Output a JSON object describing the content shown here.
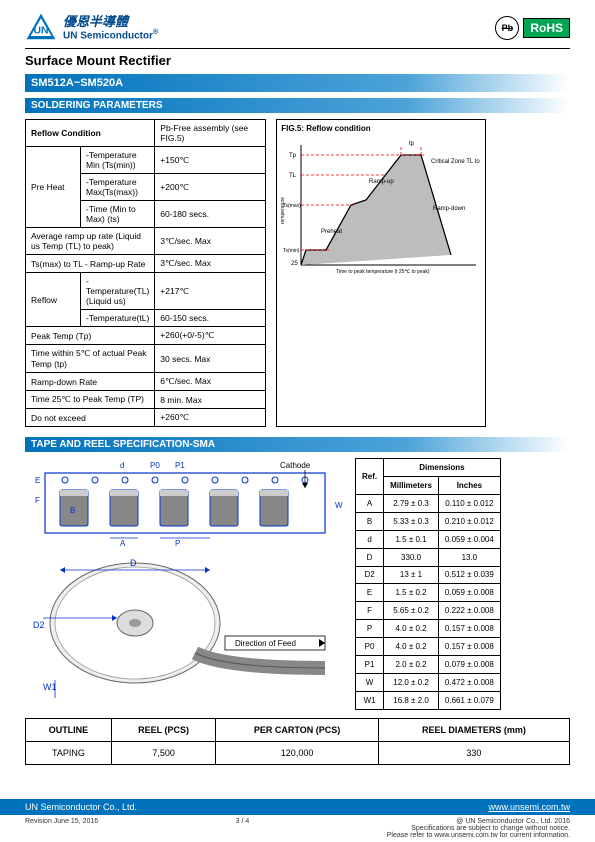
{
  "header": {
    "company_cn": "優恩半導體",
    "company_en": "UN Semiconductor",
    "reg_mark": "®",
    "pb_label": "Pb",
    "rohs_label": "RoHS"
  },
  "page_title": "Surface Mount Rectifier",
  "part_number": "SM512A~SM520A",
  "section_soldering": "SOLDERING PARAMETERS",
  "solder": {
    "header_cond": "Reflow Condition",
    "header_val": "Pb-Free assembly (see FIG.5)",
    "preheat_label": "Pre Heat",
    "rows_preheat": [
      {
        "p": "-Temperature Min (Ts(min))",
        "v": "+150℃"
      },
      {
        "p": "-Temperature Max(Ts(max))",
        "v": "+200℃"
      },
      {
        "p": "-Time (Min to Max) (ts)",
        "v": "60-180 secs."
      }
    ],
    "rows_single": [
      {
        "p": "Average ramp up rate (Liquid us Temp (TL) to peak)",
        "v": "3℃/sec. Max"
      },
      {
        "p": "Ts(max) to TL - Ramp-up Rate",
        "v": "3℃/sec. Max"
      }
    ],
    "reflow_label": "Reflow",
    "rows_reflow": [
      {
        "p": "-Temperature(TL)(Liquid us)",
        "v": "+217℃"
      },
      {
        "p": "-Temperature(tL)",
        "v": "60-150 secs."
      }
    ],
    "rows_after": [
      {
        "p": "Peak Temp (Tp)",
        "v": "+260(+0/-5)℃"
      },
      {
        "p": "Time within 5℃ of actual Peak Temp (tp)",
        "v": "30 secs. Max"
      },
      {
        "p": "Ramp-down Rate",
        "v": "6℃/sec. Max"
      },
      {
        "p": "Time 25℃ to Peak Temp (TP)",
        "v": "8 min. Max"
      },
      {
        "p": "Do not exceed",
        "v": "+260℃"
      }
    ]
  },
  "reflow_figure": {
    "caption": "FIG.5: Reflow condition",
    "labels": {
      "tp": "tp",
      "critical": "Critical Zone TL to TP",
      "rampup": "Ramp-up",
      "rampdown": "Ramp-down",
      "preheat": "Preheat",
      "xlabel": "Time to peak temperature (t 25℃ to peak)",
      "tsmin": "Ts(min)",
      "tsmax": "Ts(max)",
      "tL": "TL",
      "tP": "TP",
      "t25": "25",
      "ylabel": "Temperature"
    }
  },
  "section_tape": "TAPE AND REEL SPECIFICATION-SMA",
  "tape_labels": {
    "cathode": "Cathode",
    "direction": "Direction of Feed",
    "P0": "P0",
    "P1": "P1",
    "d": "d",
    "E": "E",
    "F": "F",
    "B": "B",
    "A": "A",
    "P": "P",
    "W": "W",
    "D": "D",
    "D2": "D2",
    "W1": "W1"
  },
  "dims": {
    "header_ref": "Ref.",
    "header_dim": "Dimensions",
    "header_mm": "Millimeters",
    "header_in": "Inches",
    "rows": [
      {
        "r": "A",
        "mm": "2.79 ± 0.3",
        "in": "0.110 ± 0.012"
      },
      {
        "r": "B",
        "mm": "5.33 ± 0.3",
        "in": "0.210 ± 0.012"
      },
      {
        "r": "d",
        "mm": "1.5 ± 0.1",
        "in": "0.059 ± 0.004"
      },
      {
        "r": "D",
        "mm": "330.0",
        "in": "13.0"
      },
      {
        "r": "D2",
        "mm": "13 ± 1",
        "in": "0.512 ± 0.039"
      },
      {
        "r": "E",
        "mm": "1.5 ± 0.2",
        "in": "0.059 ± 0.008"
      },
      {
        "r": "F",
        "mm": "5.65 ± 0.2",
        "in": "0.222 ± 0.008"
      },
      {
        "r": "P",
        "mm": "4.0 ± 0.2",
        "in": "0.157 ± 0.008"
      },
      {
        "r": "P0",
        "mm": "4.0 ± 0.2",
        "in": "0.157 ± 0.008"
      },
      {
        "r": "P1",
        "mm": "2.0 ± 0.2",
        "in": "0.079 ± 0.008"
      },
      {
        "r": "W",
        "mm": "12.0 ± 0.2",
        "in": "0.472 ± 0.008"
      },
      {
        "r": "W1",
        "mm": "16.8 ± 2.0",
        "in": "0.661 ± 0.079"
      }
    ]
  },
  "pack": {
    "h_outline": "OUTLINE",
    "h_reel": "REEL (PCS)",
    "h_carton": "PER CARTON (PCS)",
    "h_diam": "REEL DIAMETERS (mm)",
    "r_label": "TAPING",
    "r_reel": "7,500",
    "r_carton": "120,000",
    "r_diam": "330"
  },
  "footer": {
    "company": "UN Semiconductor Co., Ltd.",
    "url": "www.unsemi.com.tw",
    "revision": "Revision June 15, 2016",
    "page": "3 / 4",
    "copyright": "@ UN Semiconductor Co., Ltd. 2016",
    "note1": "Specifications are subject to change without notice.",
    "note2": "Please refer to www.unsemi.com.tw for current information."
  },
  "colors": {
    "brand": "#0072bc",
    "brand_dark": "#004b8d",
    "green": "#00a651",
    "red": "#ff0000"
  }
}
